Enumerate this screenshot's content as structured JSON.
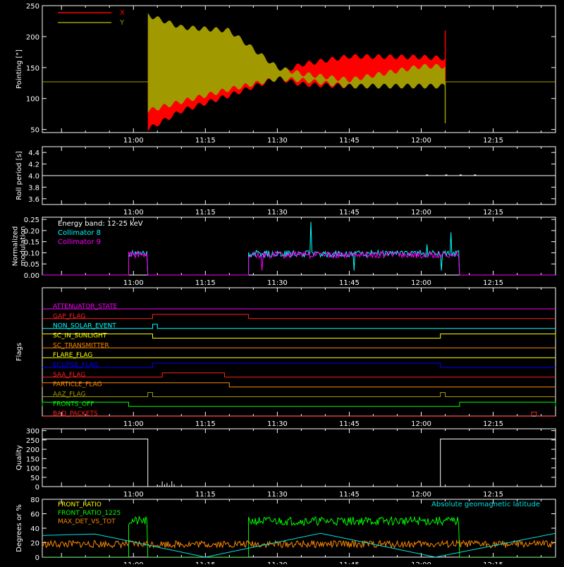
{
  "time_ticks": [
    "11:00",
    "11:15",
    "11:30",
    "11:45",
    "12:00",
    "12:15"
  ],
  "chart_data": [
    {
      "id": "pointing",
      "type": "line",
      "ylabel": "Pointing [\"]",
      "ylim": [
        45,
        250
      ],
      "yticks": [
        50,
        100,
        150,
        200,
        250
      ],
      "legend": [
        {
          "name": "X",
          "color": "#ff0000"
        },
        {
          "name": "Y",
          "color": "#a09a00"
        }
      ],
      "series": [
        {
          "name": "X",
          "color": "#ff0000",
          "baseline": 127,
          "start": "11:03",
          "end": "12:05",
          "envelope_time": [
            "11:03",
            "11:10",
            "11:20",
            "11:30",
            "11:35",
            "11:45",
            "12:00",
            "12:05"
          ],
          "upper": [
            190,
            160,
            148,
            140,
            155,
            168,
            167,
            165
          ],
          "lower": [
            50,
            80,
            105,
            133,
            123,
            120,
            128,
            130
          ],
          "spike": [
            [
              "12:05",
              210
            ]
          ]
        },
        {
          "name": "Y",
          "color": "#a09a00",
          "baseline": 127,
          "start": "11:03",
          "end": "12:05",
          "envelope_time": [
            "11:03",
            "11:10",
            "11:20",
            "11:30",
            "11:35",
            "11:45",
            "12:00",
            "12:05"
          ],
          "upper": [
            235,
            215,
            210,
            150,
            140,
            130,
            152,
            152
          ],
          "lower": [
            80,
            95,
            115,
            132,
            130,
            120,
            120,
            120
          ],
          "spike": [
            [
              "12:05",
              60
            ]
          ]
        }
      ]
    },
    {
      "id": "roll",
      "type": "line",
      "ylabel": "Roll period [s]",
      "ylim": [
        3.5,
        4.5
      ],
      "yticks": [
        3.6,
        3.8,
        4.0,
        4.2,
        4.4
      ],
      "series": [
        {
          "name": "roll",
          "color": "#ffffff",
          "x": [
            "10:41",
            "12:28"
          ],
          "y": [
            4.0,
            4.0
          ]
        }
      ]
    },
    {
      "id": "modulation",
      "type": "line",
      "ylabel": "Normalized\nmodulation",
      "ylim": [
        0.0,
        0.26
      ],
      "yticks": [
        0.0,
        0.05,
        0.1,
        0.15,
        0.2,
        0.25
      ],
      "annotation": "Energy band: 12-25 keV",
      "legend": [
        {
          "name": "Collimator 8",
          "color": "#00ffff"
        },
        {
          "name": "Collimator 9",
          "color": "#ff00ff"
        }
      ],
      "series": [
        {
          "name": "Collimator 8",
          "color": "#00ffff",
          "segments": [
            [
              "10:59",
              "11:03"
            ],
            [
              "11:24",
              "12:08"
            ]
          ],
          "base": 0.09,
          "noise": 0.03,
          "peak": 0.245
        },
        {
          "name": "Collimator 9",
          "color": "#ff00ff",
          "segments": [
            [
              "10:59",
              "11:03"
            ],
            [
              "11:24",
              "12:08"
            ]
          ],
          "base": 0.085,
          "noise": 0.03,
          "peak": 0.21
        }
      ]
    },
    {
      "id": "flags",
      "type": "line",
      "ylabel": "Flags",
      "flags": [
        {
          "name": "ATTENUATOR_STATE",
          "color": "#ff00ff",
          "on": []
        },
        {
          "name": "GAP_FLAG",
          "color": "#ff2020",
          "on": [
            [
              "11:04",
              "11:24"
            ]
          ]
        },
        {
          "name": "NON_SOLAR_EVENT",
          "color": "#00ffff",
          "on": [
            [
              "11:04",
              "11:05"
            ]
          ]
        },
        {
          "name": "SC_IN_SUNLIGHT",
          "color": "#ffff00",
          "on": [
            [
              "10:41",
              "11:04"
            ],
            [
              "12:04",
              "12:28"
            ]
          ]
        },
        {
          "name": "SC_TRANSMITTER",
          "color": "#ff8800",
          "on": []
        },
        {
          "name": "FLARE_FLAG",
          "color": "#ffff00",
          "on": []
        },
        {
          "name": "ECLIPSE_FLAG",
          "color": "#0000ff",
          "on": [
            [
              "11:04",
              "12:04"
            ]
          ]
        },
        {
          "name": "SAA_FLAG",
          "color": "#ff2020",
          "on": [
            [
              "11:06",
              "11:19"
            ]
          ]
        },
        {
          "name": "PARTICLE_FLAG",
          "color": "#ff8800",
          "on": [
            [
              "10:41",
              "11:20"
            ]
          ]
        },
        {
          "name": "AAZ_FLAG",
          "color": "#a09a00",
          "on": [
            [
              "11:03",
              "11:04"
            ],
            [
              "12:04",
              "12:05"
            ]
          ]
        },
        {
          "name": "FRONTS_OFF",
          "color": "#00ff00",
          "on": [
            [
              "10:41",
              "10:59"
            ],
            [
              "12:08",
              "12:28"
            ]
          ]
        },
        {
          "name": "BAD_PACKETS",
          "color": "#ff2020",
          "on": [
            [
              "12:23",
              "12:24"
            ]
          ]
        }
      ]
    },
    {
      "id": "quality",
      "type": "line",
      "ylabel": "Quality",
      "ylim": [
        0,
        310
      ],
      "yticks": [
        0,
        50,
        100,
        150,
        200,
        250,
        300
      ],
      "series": [
        {
          "name": "quality",
          "color": "#ffffff",
          "x": [
            "10:41",
            "11:03",
            "11:03",
            "12:04",
            "12:04",
            "12:28"
          ],
          "y": [
            255,
            255,
            0,
            0,
            255,
            255
          ]
        }
      ]
    },
    {
      "id": "geomag",
      "type": "line",
      "ylabel": "Degrees or %",
      "ylim": [
        0,
        80
      ],
      "yticks": [
        0,
        20,
        40,
        60,
        80
      ],
      "legend": [
        {
          "name": "FRONT_RATIO",
          "color": "#ffff00"
        },
        {
          "name": "FRONT_RATIO_1225",
          "color": "#00ff00"
        },
        {
          "name": "MAX_DET_VS_TOT",
          "color": "#ff8800"
        }
      ],
      "annotation": "Absolute geomagnetic latitude",
      "annotation_color": "#00e0e0",
      "series": [
        {
          "name": "FRONT_RATIO_1225",
          "color": "#00ff00",
          "segments": [
            [
              "10:59",
              "11:03"
            ],
            [
              "11:24",
              "12:08"
            ]
          ],
          "base": 50,
          "noise": 6
        },
        {
          "name": "MAX_DET_VS_TOT",
          "color": "#ff8800",
          "base": 18,
          "noise": 5
        },
        {
          "name": "Absolute geomagnetic latitude",
          "color": "#00e0e0",
          "x": [
            "10:41",
            "10:52",
            "11:15",
            "11:39",
            "12:03",
            "12:28"
          ],
          "y": [
            30,
            32,
            0,
            33,
            0,
            33
          ]
        }
      ]
    }
  ]
}
